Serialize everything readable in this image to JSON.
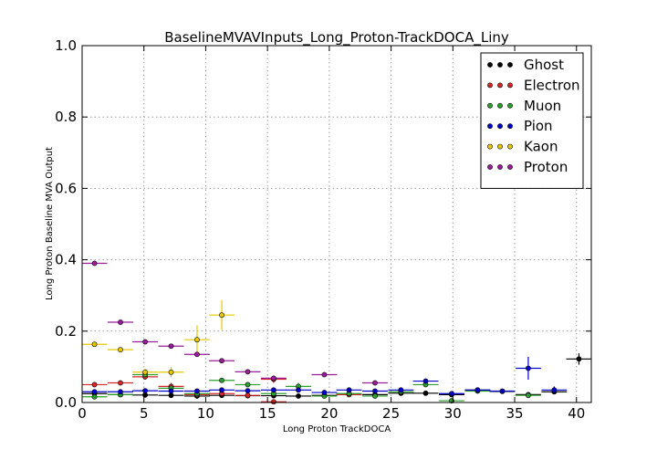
{
  "chart_data": {
    "type": "scatter",
    "title": "BaselineMVAVInputs_Long_Proton-TrackDOCA_Liny",
    "xlabel": "Long Proton TrackDOCA",
    "ylabel": "Long Proton Baseline MVA Output",
    "xlim": [
      0,
      41.2
    ],
    "ylim": [
      0,
      1.0
    ],
    "xticks": [
      0,
      5,
      10,
      15,
      20,
      25,
      30,
      35,
      40
    ],
    "yticks": [
      0.0,
      0.2,
      0.4,
      0.6,
      0.8,
      1.0
    ],
    "xtick_labels": [
      "0",
      "5",
      "10",
      "15",
      "20",
      "25",
      "30",
      "35",
      "40"
    ],
    "ytick_labels": [
      "0.0",
      "0.2",
      "0.4",
      "0.6",
      "0.8",
      "1.0"
    ],
    "grid": true,
    "legend_position": "top-right",
    "bin_half_width": 1.03,
    "series": [
      {
        "name": "Ghost",
        "color": "#000000",
        "points": [
          {
            "x": 1.0,
            "y": 0.025,
            "err": 0.003
          },
          {
            "x": 3.1,
            "y": 0.022,
            "err": 0.003
          },
          {
            "x": 5.1,
            "y": 0.021,
            "err": 0.003
          },
          {
            "x": 7.2,
            "y": 0.02,
            "err": 0.003
          },
          {
            "x": 9.3,
            "y": 0.018,
            "err": 0.003
          },
          {
            "x": 11.3,
            "y": 0.02,
            "err": 0.003
          },
          {
            "x": 13.4,
            "y": 0.019,
            "err": 0.003
          },
          {
            "x": 15.5,
            "y": 0.019,
            "err": 0.003
          },
          {
            "x": 17.5,
            "y": 0.018,
            "err": 0.003
          },
          {
            "x": 19.6,
            "y": 0.02,
            "err": 0.003
          },
          {
            "x": 21.6,
            "y": 0.024,
            "err": 0.003
          },
          {
            "x": 23.7,
            "y": 0.022,
            "err": 0.003
          },
          {
            "x": 25.8,
            "y": 0.026,
            "err": 0.003
          },
          {
            "x": 27.8,
            "y": 0.026,
            "err": 0.003
          },
          {
            "x": 29.9,
            "y": 0.022,
            "err": 0.003
          },
          {
            "x": 32.0,
            "y": 0.035,
            "err": 0.004
          },
          {
            "x": 34.0,
            "y": 0.031,
            "err": 0.004
          },
          {
            "x": 36.1,
            "y": 0.022,
            "err": 0.004
          },
          {
            "x": 38.2,
            "y": 0.03,
            "err": 0.005
          },
          {
            "x": 40.2,
            "y": 0.122,
            "err": 0.016
          }
        ]
      },
      {
        "name": "Electron",
        "color": "#d62728",
        "points": [
          {
            "x": 1.0,
            "y": 0.05,
            "err": 0.004
          },
          {
            "x": 3.1,
            "y": 0.055,
            "err": 0.005
          },
          {
            "x": 5.1,
            "y": 0.072,
            "err": 0.008
          },
          {
            "x": 7.2,
            "y": 0.045,
            "err": 0.01
          },
          {
            "x": 9.3,
            "y": 0.022,
            "err": 0.006
          },
          {
            "x": 11.3,
            "y": 0.025,
            "err": 0.006
          },
          {
            "x": 13.4,
            "y": 0.02,
            "err": 0.006
          },
          {
            "x": 15.5,
            "y": 0.065,
            "err": 0.01
          },
          {
            "x": 15.5,
            "y": 0.002,
            "err": 0.004
          },
          {
            "x": 21.6,
            "y": 0.022,
            "err": 0.005
          }
        ]
      },
      {
        "name": "Muon",
        "color": "#2ca02c",
        "points": [
          {
            "x": 1.0,
            "y": 0.016,
            "err": 0.003
          },
          {
            "x": 3.1,
            "y": 0.022,
            "err": 0.003
          },
          {
            "x": 5.1,
            "y": 0.078,
            "err": 0.008
          },
          {
            "x": 7.2,
            "y": 0.04,
            "err": 0.008
          },
          {
            "x": 9.3,
            "y": 0.025,
            "err": 0.004
          },
          {
            "x": 11.3,
            "y": 0.062,
            "err": 0.006
          },
          {
            "x": 13.4,
            "y": 0.05,
            "err": 0.006
          },
          {
            "x": 15.5,
            "y": 0.025,
            "err": 0.004
          },
          {
            "x": 17.5,
            "y": 0.045,
            "err": 0.01
          },
          {
            "x": 19.6,
            "y": 0.018,
            "err": 0.004
          },
          {
            "x": 21.6,
            "y": 0.025,
            "err": 0.004
          },
          {
            "x": 23.7,
            "y": 0.018,
            "err": 0.004
          },
          {
            "x": 25.8,
            "y": 0.03,
            "err": 0.004
          },
          {
            "x": 27.8,
            "y": 0.05,
            "err": 0.006
          },
          {
            "x": 29.9,
            "y": 0.005,
            "err": 0.004
          },
          {
            "x": 32.0,
            "y": 0.032,
            "err": 0.004
          },
          {
            "x": 36.1,
            "y": 0.02,
            "err": 0.004
          }
        ]
      },
      {
        "name": "Pion",
        "color": "#0000cc",
        "points": [
          {
            "x": 1.0,
            "y": 0.03,
            "err": 0.003
          },
          {
            "x": 3.1,
            "y": 0.03,
            "err": 0.003
          },
          {
            "x": 5.1,
            "y": 0.033,
            "err": 0.003
          },
          {
            "x": 7.2,
            "y": 0.032,
            "err": 0.003
          },
          {
            "x": 9.3,
            "y": 0.032,
            "err": 0.003
          },
          {
            "x": 11.3,
            "y": 0.035,
            "err": 0.003
          },
          {
            "x": 13.4,
            "y": 0.033,
            "err": 0.003
          },
          {
            "x": 15.5,
            "y": 0.035,
            "err": 0.003
          },
          {
            "x": 17.5,
            "y": 0.035,
            "err": 0.003
          },
          {
            "x": 19.6,
            "y": 0.028,
            "err": 0.003
          },
          {
            "x": 21.6,
            "y": 0.035,
            "err": 0.004
          },
          {
            "x": 23.7,
            "y": 0.032,
            "err": 0.004
          },
          {
            "x": 25.8,
            "y": 0.035,
            "err": 0.004
          },
          {
            "x": 27.8,
            "y": 0.06,
            "err": 0.006
          },
          {
            "x": 29.9,
            "y": 0.025,
            "err": 0.004
          },
          {
            "x": 32.0,
            "y": 0.035,
            "err": 0.004
          },
          {
            "x": 34.0,
            "y": 0.032,
            "err": 0.004
          },
          {
            "x": 36.1,
            "y": 0.096,
            "err": 0.032
          },
          {
            "x": 38.2,
            "y": 0.035,
            "err": 0.01
          }
        ]
      },
      {
        "name": "Kaon",
        "color": "#e8c800",
        "points": [
          {
            "x": 1.0,
            "y": 0.163,
            "err": 0.006
          },
          {
            "x": 3.1,
            "y": 0.148,
            "err": 0.006
          },
          {
            "x": 5.1,
            "y": 0.085,
            "err": 0.01
          },
          {
            "x": 7.2,
            "y": 0.085,
            "err": 0.015
          },
          {
            "x": 9.3,
            "y": 0.176,
            "err": 0.04
          },
          {
            "x": 11.3,
            "y": 0.245,
            "err": 0.042
          }
        ]
      },
      {
        "name": "Proton",
        "color": "#9b1c9b",
        "points": [
          {
            "x": 1.0,
            "y": 0.39,
            "err": 0.005
          },
          {
            "x": 3.1,
            "y": 0.225,
            "err": 0.005
          },
          {
            "x": 5.1,
            "y": 0.17,
            "err": 0.005
          },
          {
            "x": 7.2,
            "y": 0.158,
            "err": 0.005
          },
          {
            "x": 9.3,
            "y": 0.135,
            "err": 0.005
          },
          {
            "x": 11.3,
            "y": 0.117,
            "err": 0.005
          },
          {
            "x": 13.4,
            "y": 0.086,
            "err": 0.005
          },
          {
            "x": 15.5,
            "y": 0.068,
            "err": 0.006
          },
          {
            "x": 19.6,
            "y": 0.078,
            "err": 0.006
          },
          {
            "x": 23.7,
            "y": 0.055,
            "err": 0.006
          }
        ]
      }
    ]
  }
}
